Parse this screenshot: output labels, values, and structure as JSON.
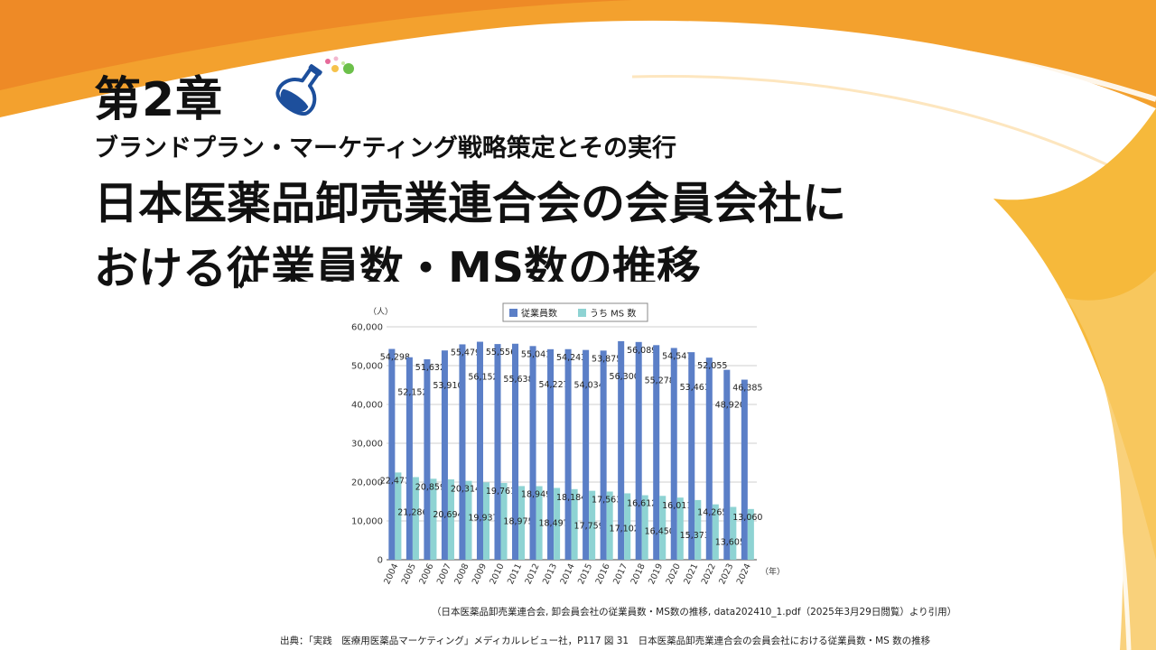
{
  "header": {
    "chapter": "第2章",
    "subtitle": "ブランドプラン・マーケティング戦略策定とその実行",
    "title_line1": "日本医薬品卸売業連合会の会員会社に",
    "title_line2": "おける従業員数・MS数の推移"
  },
  "notes": {
    "data_source": "（日本医薬品卸売業連合会, 卸会員会社の従業員数・MS数の推移, data202410_1.pdf（2025年3月29日閲覧）より引用）",
    "citation": "出典：「実践　医療用医薬品マーケティング」メディカルレビュー社，P117 図 31　日本医薬品卸売業連合会の会員会社における従業員数・MS 数の推移"
  },
  "colors": {
    "employees": "#5b7fc7",
    "ms": "#8ed3d3",
    "orange": "#f08a24",
    "yellow": "#f6b93b"
  },
  "chart_data": {
    "type": "bar",
    "categories": [
      "2004",
      "2005",
      "2006",
      "2007",
      "2008",
      "2009",
      "2010",
      "2011",
      "2012",
      "2013",
      "2014",
      "2015",
      "2016",
      "2017",
      "2018",
      "2019",
      "2020",
      "2021",
      "2022",
      "2023",
      "2024"
    ],
    "series": [
      {
        "name": "従業員数",
        "values": [
          54298,
          52152,
          51632,
          53910,
          55479,
          56152,
          55556,
          55638,
          55041,
          54227,
          54243,
          54034,
          53875,
          56300,
          56089,
          55278,
          54547,
          53461,
          52055,
          48920,
          46385
        ]
      },
      {
        "name": "うち MS 数",
        "values": [
          22471,
          21286,
          20859,
          20694,
          20314,
          19937,
          19761,
          18975,
          18949,
          18497,
          18184,
          17759,
          17563,
          17102,
          16612,
          16450,
          16011,
          15373,
          14265,
          13605,
          13060
        ]
      }
    ],
    "labels": {
      "employees": [
        "54,298",
        "52,152",
        "51,632",
        "53,910",
        "55,479",
        "56,152",
        "55,556",
        "55,638",
        "55,041",
        "54,227",
        "54,243",
        "54,034",
        "53,875",
        "56,300",
        "56,089",
        "55,278",
        "54,547",
        "53,461",
        "52,055",
        "48,920",
        "46,385"
      ],
      "ms": [
        "22,471",
        "21,286",
        "20,859",
        "20,694",
        "20,314",
        "19,937",
        "19,761",
        "18,975",
        "18,949",
        "18,497",
        "18,184",
        "17,759",
        "17,563",
        "17,102",
        "16,612",
        "16,450",
        "16,011",
        "15,373",
        "14,265",
        "13,605",
        "13,060"
      ]
    },
    "yticks": [
      "0",
      "10,000",
      "20,000",
      "30,000",
      "40,000",
      "50,000",
      "60,000"
    ],
    "yunit": "（人）",
    "xunit": "（年）",
    "ylim": [
      0,
      60000
    ],
    "grid": true,
    "legend_position": "top"
  }
}
